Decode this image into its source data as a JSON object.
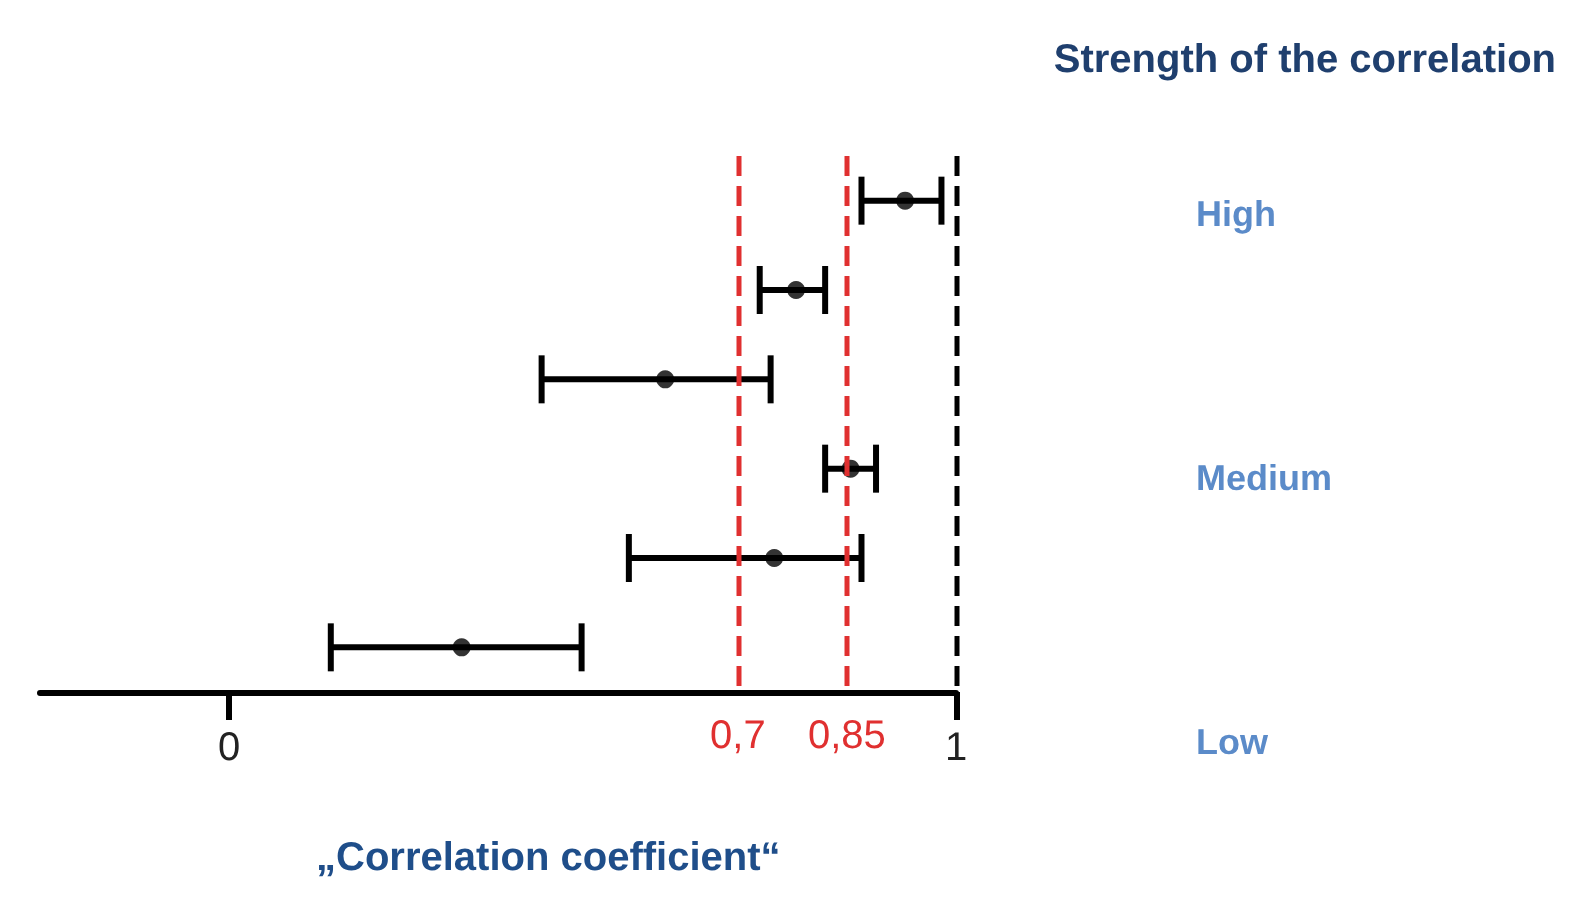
{
  "chart_data": {
    "type": "scatter",
    "orientation": "horizontal",
    "title": "Strength of the correlation",
    "xlabel": "„Correlation coefficient“",
    "categories": [
      null,
      null,
      null,
      null,
      null,
      null
    ],
    "values": [
      0.93,
      0.78,
      0.6,
      0.855,
      0.75,
      0.32
    ],
    "errors": [
      [
        0.87,
        0.98
      ],
      [
        0.73,
        0.82
      ],
      [
        0.43,
        0.745
      ],
      [
        0.82,
        0.89
      ],
      [
        0.55,
        0.87
      ],
      [
        0.14,
        0.485
      ]
    ],
    "color": "#000000",
    "marker": "circle",
    "xlim": [
      -0.26,
      1
    ],
    "xticks": [
      0,
      1
    ],
    "ref_lines": [
      {
        "axis": "x",
        "value": 0.7,
        "label": "0,7",
        "color": "#e03030",
        "line_style": "dashed"
      },
      {
        "axis": "x",
        "value": 0.85,
        "label": "0,85",
        "color": "#e03030",
        "line_style": "dashed"
      },
      {
        "axis": "x",
        "value": 1,
        "label": null,
        "color": "#000000",
        "line_style": "dashed"
      }
    ],
    "annotations": [
      "High",
      "Medium",
      "Low"
    ],
    "grid": false,
    "legend": false
  }
}
